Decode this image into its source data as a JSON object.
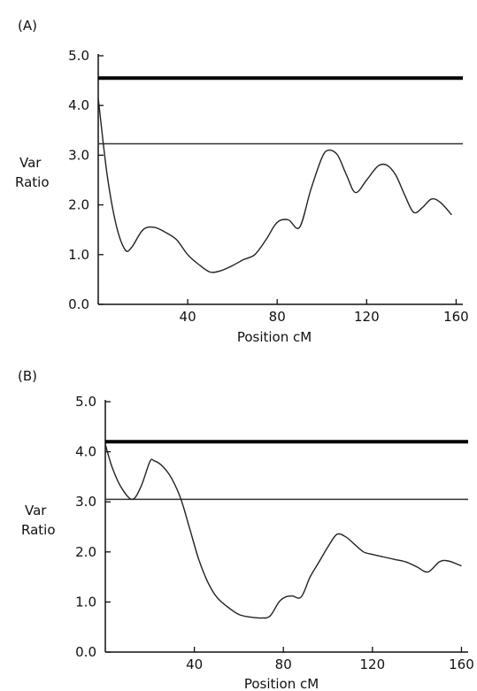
{
  "chart_data": [
    {
      "type": "line",
      "panel_label": "(A)",
      "ylabel_line1": "Var",
      "ylabel_line2": "Ratio",
      "xlabel": "Position cM",
      "xlim": [
        0,
        163
      ],
      "ylim": [
        0.0,
        5.0
      ],
      "x_ticks": [
        40,
        80,
        120,
        160
      ],
      "y_ticks": [
        "0.0",
        "1.0",
        "2.0",
        "3.0",
        "4.0",
        "5.0"
      ],
      "thresholds": [
        {
          "y": 4.55,
          "style": "thick"
        },
        {
          "y": 3.23,
          "style": "thin"
        }
      ],
      "series": [
        {
          "x": [
            0,
            4,
            8,
            12,
            15,
            20,
            25,
            30,
            35,
            40,
            45,
            50,
            55,
            60,
            65,
            70,
            75,
            80,
            85,
            90,
            95,
            100,
            103,
            107,
            111,
            115,
            120,
            125,
            129,
            133,
            137,
            141,
            145,
            149,
            153,
            158
          ],
          "y": [
            4.15,
            2.6,
            1.6,
            1.1,
            1.15,
            1.5,
            1.55,
            1.45,
            1.3,
            1.0,
            0.8,
            0.65,
            0.68,
            0.78,
            0.9,
            1.0,
            1.3,
            1.65,
            1.7,
            1.55,
            2.3,
            2.95,
            3.1,
            3.0,
            2.6,
            2.25,
            2.5,
            2.78,
            2.8,
            2.6,
            2.2,
            1.85,
            1.95,
            2.12,
            2.05,
            1.8
          ]
        }
      ]
    },
    {
      "type": "line",
      "panel_label": "(B)",
      "ylabel_line1": "Var",
      "ylabel_line2": "Ratio",
      "xlabel": "Position cM",
      "xlim": [
        0,
        163
      ],
      "ylim": [
        0.0,
        5.0
      ],
      "x_ticks": [
        40,
        80,
        120,
        160
      ],
      "y_ticks": [
        "0.0",
        "1.0",
        "2.0",
        "3.0",
        "4.0",
        "5.0"
      ],
      "thresholds": [
        {
          "y": 4.2,
          "style": "thick"
        },
        {
          "y": 3.05,
          "style": "thin"
        }
      ],
      "series": [
        {
          "x": [
            0,
            3,
            7,
            12,
            16,
            20,
            22,
            26,
            30,
            34,
            38,
            42,
            46,
            50,
            55,
            60,
            65,
            70,
            74,
            78,
            81,
            84,
            88,
            92,
            96,
            100,
            104,
            108,
            112,
            116,
            120,
            125,
            130,
            135,
            140,
            145,
            150,
            154,
            160
          ],
          "y": [
            4.15,
            3.7,
            3.3,
            3.05,
            3.3,
            3.8,
            3.82,
            3.7,
            3.45,
            3.05,
            2.45,
            1.85,
            1.4,
            1.1,
            0.9,
            0.75,
            0.7,
            0.68,
            0.72,
            1.0,
            1.1,
            1.12,
            1.1,
            1.5,
            1.8,
            2.1,
            2.35,
            2.3,
            2.15,
            2.0,
            1.95,
            1.9,
            1.85,
            1.8,
            1.7,
            1.6,
            1.8,
            1.82,
            1.72
          ]
        }
      ]
    }
  ]
}
